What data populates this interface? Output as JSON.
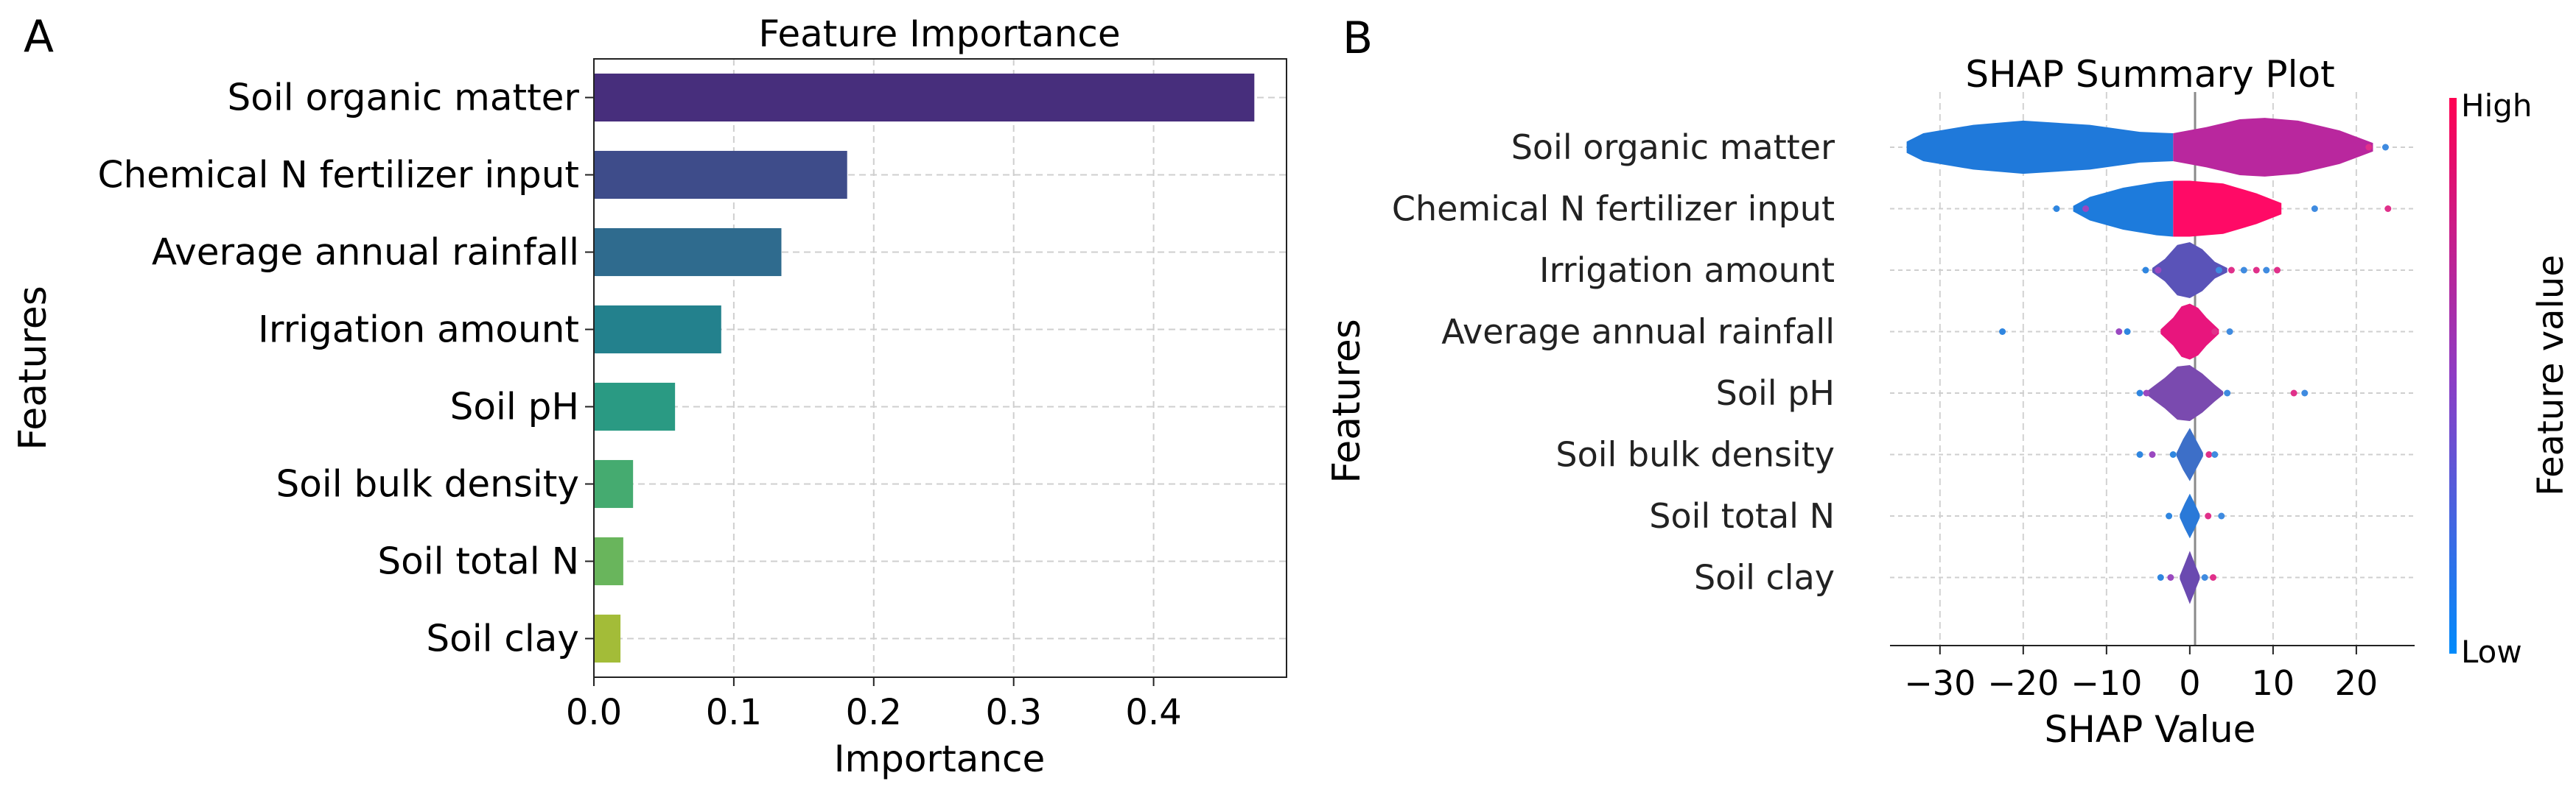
{
  "chart_data": [
    {
      "type": "bar",
      "panel_label": "A",
      "orientation": "horizontal",
      "title": "Feature Importance",
      "xlabel": "Importance",
      "ylabel": "Features",
      "categories": [
        "Soil organic matter",
        "Chemical N fertilizer input",
        "Average annual rainfall",
        "Irrigation amount",
        "Soil pH",
        "Soil bulk density",
        "Soil total N",
        "Soil  clay"
      ],
      "values": [
        0.472,
        0.181,
        0.134,
        0.091,
        0.058,
        0.028,
        0.021,
        0.019
      ],
      "bar_colors": [
        "#472e7c",
        "#3e4c8a",
        "#2f6b8e",
        "#23818d",
        "#2a9a83",
        "#45ab70",
        "#69b55c",
        "#a3bc38"
      ],
      "xlim": [
        0,
        0.495
      ],
      "xticks": [
        0.0,
        0.1,
        0.2,
        0.3,
        0.4
      ],
      "xtick_labels": [
        "0.0",
        "0.1",
        "0.2",
        "0.3",
        "0.4"
      ],
      "grid": true
    },
    {
      "type": "scatter",
      "subtype": "shap-beeswarm",
      "panel_label": "B",
      "title": "SHAP Summary Plot",
      "xlabel": "SHAP Value",
      "ylabel": "Features",
      "features": [
        "Soil organic matter",
        "Chemical N fertilizer input",
        "Irrigation amount",
        "Average annual rainfall",
        "Soil pH",
        "Soil bulk density",
        "Soil total N",
        "Soil  clay"
      ],
      "xlim": [
        -36,
        27
      ],
      "xticks": [
        -30,
        -20,
        -10,
        0,
        10,
        20
      ],
      "xtick_labels": [
        "−30",
        "−20",
        "−10",
        "0",
        "10",
        "20"
      ],
      "grid": true,
      "colorbar": {
        "label": "Feature value",
        "high": "High",
        "low": "Low",
        "high_color": "#ff0052",
        "low_color": "#008bfb"
      },
      "distributions": [
        {
          "feature": "Soil organic matter",
          "outliers": [
            23.5,
            21.5
          ],
          "segments": [
            {
              "x": [
                -34,
                -32,
                -26,
                -20,
                -12,
                -6,
                -2
              ],
              "w": [
                0.2,
                0.5,
                0.8,
                0.95,
                0.8,
                0.55,
                0.5
              ],
              "color": "#1f79da"
            },
            {
              "x": [
                -2,
                2,
                6,
                9,
                13,
                18,
                22
              ],
              "w": [
                0.5,
                0.72,
                1.0,
                1.05,
                0.95,
                0.6,
                0.15
              ],
              "color": "#b9279e"
            }
          ]
        },
        {
          "feature": "Chemical N fertilizer input",
          "outliers": [
            -16,
            -12.5,
            15,
            23.8
          ],
          "segments": [
            {
              "x": [
                -14,
                -12,
                -8,
                -4,
                -2
              ],
              "w": [
                0.1,
                0.42,
                0.75,
                0.95,
                1.0
              ],
              "color": "#1d7bdc"
            },
            {
              "x": [
                -2,
                0,
                4,
                8,
                11
              ],
              "w": [
                1.0,
                1.0,
                0.9,
                0.55,
                0.2
              ],
              "color": "#ff0a66"
            }
          ]
        },
        {
          "feature": "Irrigation amount",
          "outliers": [
            -5.3,
            -3.8,
            3.5,
            5,
            6.5,
            8,
            9.2,
            10.5
          ],
          "segments": [
            {
              "x": [
                -4.5,
                -3,
                -1.5,
                0,
                1.5,
                3,
                4.5
              ],
              "w": [
                0.08,
                0.4,
                0.9,
                1.0,
                0.75,
                0.3,
                0.08
              ],
              "color": "#5a53b8"
            }
          ]
        },
        {
          "feature": "Average annual rainfall",
          "outliers": [
            -22.5,
            -8.5,
            -7.5,
            3,
            4.8
          ],
          "segments": [
            {
              "x": [
                -3.5,
                -2,
                -1,
                0,
                1,
                2,
                3.5
              ],
              "w": [
                0.08,
                0.5,
                0.9,
                1.0,
                0.85,
                0.5,
                0.08
              ],
              "color": "#e8157d"
            }
          ]
        },
        {
          "feature": "Soil pH",
          "outliers": [
            -6,
            -5.2,
            4.5,
            12.5,
            13.8
          ],
          "segments": [
            {
              "x": [
                -5,
                -3,
                -1.5,
                0,
                1.5,
                3,
                4
              ],
              "w": [
                0.1,
                0.55,
                0.95,
                1.0,
                0.7,
                0.3,
                0.06
              ],
              "color": "#7a4aaf"
            }
          ]
        },
        {
          "feature": "Soil bulk density",
          "outliers": [
            -6,
            -4.5,
            -2,
            2.3,
            3
          ],
          "segments": [
            {
              "x": [
                -1.6,
                -0.8,
                0,
                0.8,
                1.6
              ],
              "w": [
                0.06,
                0.55,
                0.95,
                0.5,
                0.06
              ],
              "color": "#3d6fc8"
            }
          ]
        },
        {
          "feature": "Soil total N",
          "outliers": [
            -2.5,
            2.2,
            3.8
          ],
          "segments": [
            {
              "x": [
                -1.2,
                -0.6,
                0,
                0.6,
                1.2
              ],
              "w": [
                0.06,
                0.45,
                0.8,
                0.45,
                0.06
              ],
              "color": "#2a79d8"
            }
          ]
        },
        {
          "feature": "Soil  clay",
          "outliers": [
            -3.5,
            -2.3,
            1.8,
            2.8
          ],
          "segments": [
            {
              "x": [
                -1.2,
                -0.6,
                0,
                0.6,
                1.2
              ],
              "w": [
                0.06,
                0.5,
                0.95,
                0.5,
                0.06
              ],
              "color": "#6a4ab0"
            }
          ]
        }
      ]
    }
  ]
}
